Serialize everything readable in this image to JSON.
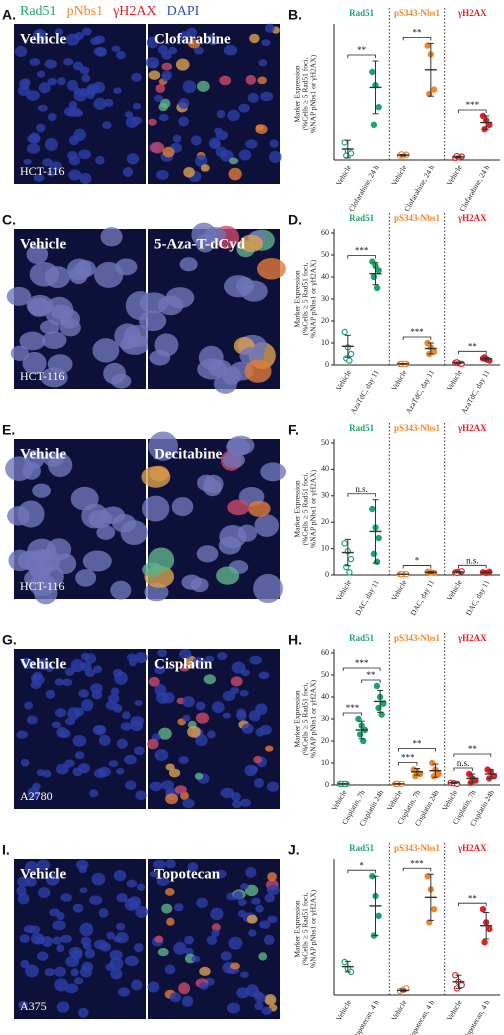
{
  "legend": [
    {
      "name": "Rad51",
      "color": "#1fa36b"
    },
    {
      "name": "pNbs1",
      "color": "#f0862a"
    },
    {
      "name": "γH2AX",
      "color": "#e0202a"
    },
    {
      "name": "DAPI",
      "color": "#2f4fb0"
    }
  ],
  "images": [
    {
      "label": "A.",
      "left": "Vehicle",
      "right": "Clofarabine",
      "cell_line": "HCT-116"
    },
    {
      "label": "C.",
      "left": "Vehicle",
      "right": "5-Aza-T-dCyd",
      "cell_line": "HCT-116"
    },
    {
      "label": "E.",
      "left": "Vehicle",
      "right": "Decitabine",
      "cell_line": "HCT-116"
    },
    {
      "label": "G.",
      "left": "Vehicle",
      "right": "Cisplatin",
      "cell_line": "A2780"
    },
    {
      "label": "I.",
      "left": "Vehicle",
      "right": "Topotecan",
      "cell_line": "A375"
    }
  ],
  "chart_data": [
    {
      "type": "dotplot",
      "label": "B.",
      "ylabel": [
        "Marker Expression",
        "(%Cells ≥ 5 Rad51 foci,",
        "%NAP pNbs1 or γH2AX)"
      ],
      "ylim": [
        0,
        30
      ],
      "groups": [
        {
          "name": "Rad51",
          "color": "#1fa36b",
          "categories": [
            {
              "name": "Vehicle",
              "points": [
                4,
                2,
                1.5,
                1
              ],
              "mean": 2.5,
              "error": 2
            },
            {
              "name": "Clofarabine, 24 h",
              "points": [
                20,
                17,
                12,
                8
              ],
              "mean": 16.5,
              "error": 6,
              "sig": "**"
            }
          ]
        },
        {
          "name": "pS343-Nbs1",
          "color": "#f0862a",
          "categories": [
            {
              "name": "Vehicle",
              "points": [
                1,
                1,
                1.2,
                1.3
              ],
              "mean": 1.1,
              "error": 0.2
            },
            {
              "name": "Clofarabine, 24 h",
              "points": [
                26,
                24,
                16,
                15
              ],
              "mean": 20.5,
              "error": 6,
              "sig": "**"
            }
          ]
        },
        {
          "name": "γH2AX",
          "color": "#e0202a",
          "categories": [
            {
              "name": "Vehicle",
              "points": [
                0.5,
                0.6,
                0.8,
                0.9
              ],
              "mean": 0.7,
              "error": 0.2
            },
            {
              "name": "Clofarabine, 24 h",
              "points": [
                10,
                9,
                8,
                7
              ],
              "mean": 8.5,
              "error": 1.5,
              "sig": "***"
            }
          ]
        }
      ]
    },
    {
      "type": "dotplot",
      "label": "D.",
      "ylabel": [
        "Marker Expression",
        "(%Cells ≥ 5 Rad51 foci,",
        "%NAP pNbs1 or γH2AX)"
      ],
      "ylim": [
        0,
        60
      ],
      "yticks": [
        0,
        10,
        20,
        30,
        40,
        50,
        60
      ],
      "groups": [
        {
          "name": "Rad51",
          "color": "#1fa36b",
          "categories": [
            {
              "name": "Vehicle",
              "points": [
                15,
                8,
                5,
                3,
                2
              ],
              "mean": 8.5,
              "error": 5
            },
            {
              "name": "AzaTdC, day 11",
              "points": [
                47,
                45,
                43,
                40,
                35
              ],
              "mean": 41.5,
              "error": 5,
              "sig": "***"
            }
          ]
        },
        {
          "name": "pS343-Nbs1",
          "color": "#f0862a",
          "categories": [
            {
              "name": "Vehicle",
              "points": [
                0.5,
                0.5,
                0.5,
                0.5,
                0.5
              ],
              "mean": 0.5,
              "error": 0.2
            },
            {
              "name": "AzaTdC, day 11",
              "points": [
                10,
                8,
                6,
                5
              ],
              "mean": 7.5,
              "error": 2.5,
              "sig": "***"
            }
          ]
        },
        {
          "name": "γH2AX",
          "color": "#e0202a",
          "categories": [
            {
              "name": "Vehicle",
              "points": [
                1,
                0.8,
                0.5,
                1.2
              ],
              "mean": 1,
              "error": 0.4
            },
            {
              "name": "AzaTdC, day 11",
              "points": [
                3,
                2.5,
                2,
                3.5
              ],
              "mean": 2.8,
              "error": 0.6,
              "sig": "**"
            }
          ]
        }
      ]
    },
    {
      "type": "dotplot",
      "label": "F.",
      "ylabel": [
        "Marker Expression",
        "(%Cells ≥ 5 Rad51 foci,",
        "%NAP pNbs1 or γH2AX)"
      ],
      "ylim": [
        0,
        50
      ],
      "yticks": [
        0,
        10,
        20,
        30,
        40,
        50
      ],
      "groups": [
        {
          "name": "Rad51",
          "color": "#1fa36b",
          "categories": [
            {
              "name": "Vehicle",
              "points": [
                12,
                9,
                6,
                3,
                1
              ],
              "mean": 8.5,
              "error": 5
            },
            {
              "name": "DAC, day 11",
              "points": [
                25,
                18,
                14,
                8,
                5
              ],
              "mean": 16.5,
              "error": 12,
              "sig": "n.s."
            }
          ]
        },
        {
          "name": "pS343-Nbs1",
          "color": "#f0862a",
          "categories": [
            {
              "name": "Vehicle",
              "points": [
                0.3,
                0.3,
                0.3,
                0.3
              ],
              "mean": 0.3,
              "error": 0.1
            },
            {
              "name": "DAC, day 11",
              "points": [
                1.2,
                1,
                0.8
              ],
              "mean": 1,
              "error": 0.3,
              "sig": "*"
            }
          ]
        },
        {
          "name": "γH2AX",
          "color": "#e0202a",
          "categories": [
            {
              "name": "Vehicle",
              "points": [
                1,
                1.2,
                1.4,
                0.8
              ],
              "mean": 1.1,
              "error": 0.3
            },
            {
              "name": "DAC, day 11",
              "points": [
                1,
                0.8,
                1.2
              ],
              "mean": 1,
              "error": 0.2,
              "sig": "n.s."
            }
          ]
        }
      ]
    },
    {
      "type": "dotplot",
      "label": "H.",
      "ylabel": [
        "Marker Expression",
        "(%Cells ≥ 5 Rad51 foci,",
        "%NAP pNbs1 or γH2AX)"
      ],
      "ylim": [
        0,
        60
      ],
      "yticks": [
        0,
        10,
        20,
        30,
        40,
        50,
        60
      ],
      "groups": [
        {
          "name": "Rad51",
          "color": "#1fa36b",
          "categories": [
            {
              "name": "Vehicle",
              "points": [
                0.5,
                0.5,
                0.5,
                0.5,
                0.5
              ],
              "mean": 0.5,
              "error": 0.2
            },
            {
              "name": "Cisplatin, 7h",
              "points": [
                30,
                27,
                25,
                23,
                20
              ],
              "mean": 25,
              "error": 4,
              "sig": "***"
            },
            {
              "name": "Cisplatin 24h",
              "points": [
                45,
                40,
                37,
                35,
                32
              ],
              "mean": 38,
              "error": 5,
              "sig": "***",
              "sig_prev": "**"
            }
          ]
        },
        {
          "name": "pS343-Nbs1",
          "color": "#f0862a",
          "categories": [
            {
              "name": "Vehicle",
              "points": [
                0.5,
                0.5,
                0.5,
                0.5
              ],
              "mean": 0.5,
              "error": 0.2
            },
            {
              "name": "Cisplatin, 7h",
              "points": [
                7,
                6,
                5,
                4
              ],
              "mean": 6,
              "error": 1.5,
              "sig": "***"
            },
            {
              "name": "Cisplatin 24h",
              "points": [
                10,
                7,
                5,
                4
              ],
              "mean": 6.5,
              "error": 3,
              "sig": "**"
            }
          ]
        },
        {
          "name": "γH2AX",
          "color": "#e0202a",
          "categories": [
            {
              "name": "Vehicle",
              "points": [
                1,
                0.8,
                0.5
              ],
              "mean": 1,
              "error": 0.3
            },
            {
              "name": "Cisplatin, 7h",
              "points": [
                5,
                3,
                2,
                1
              ],
              "mean": 3,
              "error": 2,
              "sig": "n.s."
            },
            {
              "name": "Cisplatin 24h",
              "points": [
                7,
                6,
                4,
                3
              ],
              "mean": 5,
              "error": 2,
              "sig": "**"
            }
          ]
        }
      ]
    },
    {
      "type": "dotplot",
      "label": "J.",
      "ylabel": [
        "Marker Expression",
        "(%Cells ≥ 5 Rad51 foci,",
        "%NAP pNbs1 or γH2AX)"
      ],
      "ylim": [
        0,
        20
      ],
      "groups": [
        {
          "name": "Rad51",
          "color": "#1fa36b",
          "categories": [
            {
              "name": "Vehicle",
              "points": [
                5,
                4,
                3.5
              ],
              "mean": 4.3,
              "error": 0.8
            },
            {
              "name": "Topotecan, 4 h",
              "points": [
                18,
                15,
                12,
                9
              ],
              "mean": 13.5,
              "error": 4.5,
              "sig": "*"
            }
          ]
        },
        {
          "name": "pS343-Nbs1",
          "color": "#f0862a",
          "categories": [
            {
              "name": "Vehicle",
              "points": [
                0.6,
                0.8,
                1
              ],
              "mean": 0.7,
              "error": 0.2
            },
            {
              "name": "Topotecan, 4 h",
              "points": [
                18,
                16,
                13,
                11
              ],
              "mean": 14.8,
              "error": 3.5,
              "sig": "***"
            }
          ]
        },
        {
          "name": "γH2AX",
          "color": "#e0202a",
          "categories": [
            {
              "name": "Vehicle",
              "points": [
                3,
                2,
                1.5,
                1
              ],
              "mean": 2,
              "error": 1
            },
            {
              "name": "Topotecan, 4 h",
              "points": [
                13,
                11,
                10,
                8
              ],
              "mean": 10.5,
              "error": 2,
              "sig": "**"
            }
          ]
        }
      ]
    }
  ]
}
